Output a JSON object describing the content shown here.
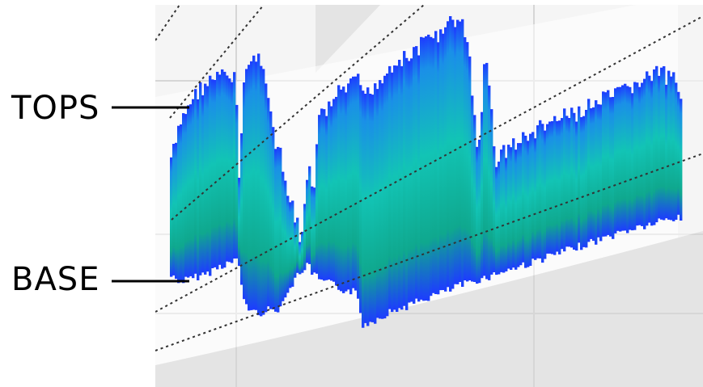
{
  "annotations": {
    "tops_label": "TOPS",
    "base_label": "BASE"
  },
  "colors": {
    "panel_background": "#f5f5f5",
    "grid_line": "#d6d6d6",
    "out_of_range_fill": "#e4e4e4",
    "echo_outer": "#1d3cff",
    "echo_mid": "#1a8fe8",
    "echo_core": "#12c4b5",
    "echo_deep": "#0a8a6a",
    "range_ring": "#333333",
    "leader_line": "#000000"
  }
}
